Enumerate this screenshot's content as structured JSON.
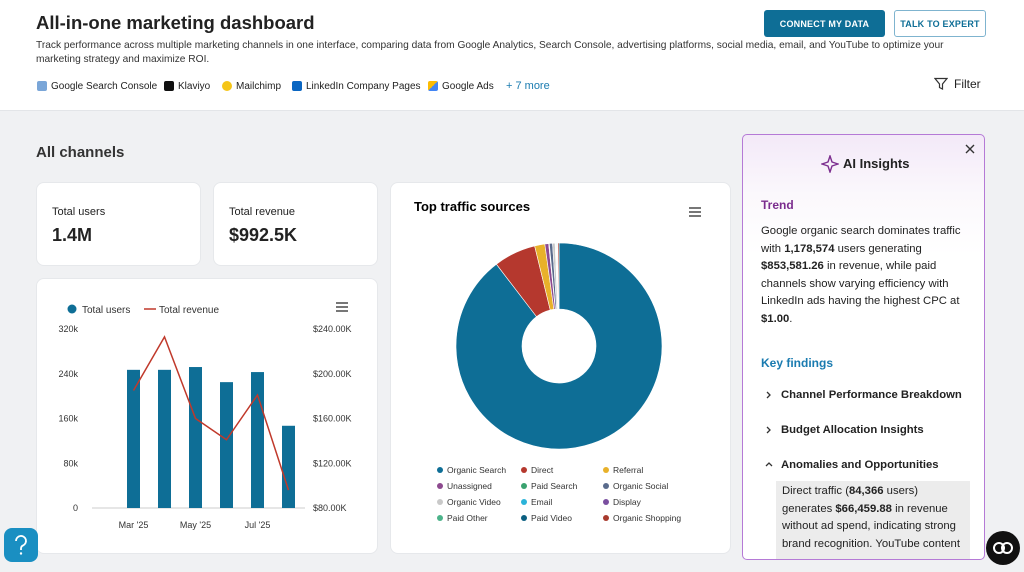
{
  "header": {
    "title": "All-in-one marketing dashboard",
    "description": "Track performance across multiple marketing channels in one interface, comparing data from Google Analytics, Search Console, advertising platforms, social media, email, and YouTube to optimize your marketing strategy and maximize ROI.",
    "integrations": [
      "Google Search Console",
      "Klaviyo",
      "Mailchimp",
      "LinkedIn Company Pages",
      "Google Ads"
    ],
    "more": "+ 7 more",
    "buttons": [
      "CONNECT MY DATA",
      "TALK TO EXPERT"
    ],
    "filter": "Filter"
  },
  "section_title": "All channels",
  "kpis": [
    {
      "label": "Total users",
      "value": "1.4M"
    },
    {
      "label": "Total revenue",
      "value": "$992.5K"
    }
  ],
  "chart_data": [
    {
      "type": "combo",
      "categories": [
        "Mar '25",
        null,
        "May '25",
        null,
        "Jul '25",
        null
      ],
      "series": [
        {
          "name": "Total users",
          "type": "bar",
          "color": "#0e6e96",
          "values": [
            247000,
            247000,
            252000,
            225000,
            243000,
            147000
          ]
        },
        {
          "name": "Total revenue",
          "type": "line",
          "color": "#c0392b",
          "axis": "y2",
          "values": [
            185000,
            233000,
            160000,
            141000,
            181000,
            96000
          ]
        }
      ],
      "ylim": [
        0,
        320000
      ],
      "yticks": [
        0,
        {
          "value": 80000,
          "label": "80k"
        },
        {
          "value": 160000,
          "label": "160k"
        },
        {
          "value": 240000,
          "label": "240k"
        },
        {
          "value": 320000,
          "label": "320k"
        }
      ],
      "y2lim": [
        80000,
        240000
      ],
      "y2ticks": [
        {
          "value": 80000,
          "label": "$80.00K"
        },
        {
          "value": 120000,
          "label": "$120.00K"
        },
        {
          "value": 160000,
          "label": "$160.00K"
        },
        {
          "value": 200000,
          "label": "$200.00K"
        },
        {
          "value": 240000,
          "label": "$240.00K"
        }
      ]
    },
    {
      "type": "donut",
      "title": "Top traffic sources",
      "categories": [
        "Organic Search",
        "Direct",
        "Referral",
        "Unassigned",
        "Paid Search",
        "Organic Social",
        "Organic Video",
        "Email",
        "Display",
        "Paid Other",
        "Paid Video",
        "Organic Shopping"
      ],
      "values": [
        89.6,
        6.6,
        1.6,
        0.6,
        0.1,
        0.5,
        0.4,
        0.1,
        0.1,
        0.1,
        0.1,
        0.2
      ],
      "colors": [
        "#0e6e96",
        "#b5382e",
        "#e8b12a",
        "#8d4a8f",
        "#3aa26f",
        "#5a6b8c",
        "#c9c9c9",
        "#2bb3d9",
        "#7a4fa0",
        "#4cb38a",
        "#0b5f80",
        "#a83a2e"
      ]
    }
  ],
  "insights": {
    "title": "AI Insights",
    "trend_title": "Trend",
    "trend": [
      "Google organic search dominates traffic with ",
      "1,178,574",
      " users generating ",
      "$853,581.26",
      " in revenue, while paid channels show varying efficiency with LinkedIn ads having the highest CPC at ",
      "$1.00",
      "."
    ],
    "findings_title": "Key findings",
    "findings": [
      "Channel Performance Breakdown",
      "Budget Allocation Insights",
      "Anomalies and Opportunities"
    ],
    "anomaly": [
      "Direct traffic (",
      "84,366",
      " users) generates ",
      "$66,459.88",
      " in revenue without ad spend, indicating strong brand recognition. YouTube content"
    ]
  }
}
